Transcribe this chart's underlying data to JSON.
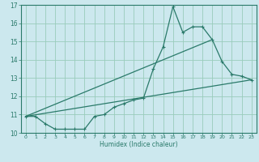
{
  "background_color": "#cce8ee",
  "grid_color": "#99ccbb",
  "line_color": "#2a7a6a",
  "xlabel": "Humidex (Indice chaleur)",
  "xlim": [
    -0.5,
    23.5
  ],
  "ylim": [
    10,
    17
  ],
  "yticks": [
    10,
    11,
    12,
    13,
    14,
    15,
    16,
    17
  ],
  "xticks": [
    0,
    1,
    2,
    3,
    4,
    5,
    6,
    7,
    8,
    9,
    10,
    11,
    12,
    13,
    14,
    15,
    16,
    17,
    18,
    19,
    20,
    21,
    22,
    23
  ],
  "series1_x": [
    0,
    1,
    2,
    3,
    4,
    5,
    6,
    7,
    8,
    9,
    10,
    11,
    12,
    13,
    14,
    15,
    16,
    17,
    18,
    19,
    20,
    21,
    22,
    23
  ],
  "series1_y": [
    10.9,
    10.9,
    10.5,
    10.2,
    10.2,
    10.2,
    10.2,
    10.9,
    11.0,
    11.4,
    11.6,
    11.8,
    11.9,
    13.5,
    14.7,
    16.9,
    15.5,
    15.8,
    15.8,
    15.1,
    13.9,
    13.2,
    13.1,
    12.9
  ],
  "series2_x": [
    0,
    23
  ],
  "series2_y": [
    10.9,
    12.9
  ],
  "series3_x": [
    0,
    19
  ],
  "series3_y": [
    10.9,
    15.1
  ]
}
